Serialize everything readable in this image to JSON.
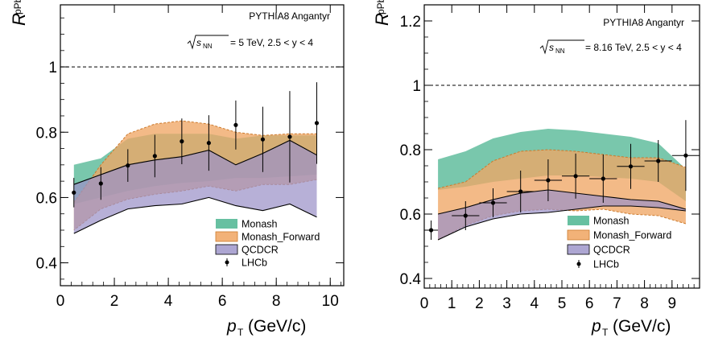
{
  "colors": {
    "monash_fill": "#57b997",
    "monash_forward_fill": "#f0a765",
    "monash_forward_line": "#cc7a2c",
    "qcdcr_fill": "#9b92c8",
    "lhcb_marker": "#000000",
    "reference_line": "#000000"
  },
  "chart_data": [
    {
      "type": "area",
      "generator_label": "PYTHIA8 Angantyr",
      "energy_label": "= 5 TeV, 2.5 < y < 4",
      "sqrt_label": "s",
      "sqrt_subscript": "NN",
      "ylabel_main": "R",
      "ylabel_sub": "pPb",
      "xlabel_main": "p",
      "xlabel_sub": "T",
      "xlabel_unit": "(GeV/c)",
      "xlim": [
        0,
        10.5
      ],
      "ylim": [
        0.33,
        1.19
      ],
      "xticks": [
        0,
        2,
        4,
        6,
        8,
        10
      ],
      "yticks": [
        0.4,
        0.6,
        0.8,
        1
      ],
      "ytick_labels": [
        "0.4",
        "0.6",
        "0.8",
        "1"
      ],
      "reference_y": 1,
      "legend": [
        "Monash",
        "Monash_Forward",
        "QCDCR",
        "LHCb"
      ],
      "series": [
        {
          "name": "Monash",
          "x": [
            0.5,
            1.5,
            2.5,
            3.5,
            4.5,
            5.5,
            6.5,
            7.5,
            8.5,
            9.5
          ],
          "upper": [
            0.7,
            0.72,
            0.78,
            0.795,
            0.795,
            0.795,
            0.78,
            0.79,
            0.79,
            0.79
          ],
          "lower": [
            0.58,
            0.6,
            0.62,
            0.635,
            0.645,
            0.65,
            0.66,
            0.66,
            0.665,
            0.67
          ]
        },
        {
          "name": "Monash_Forward",
          "x": [
            0.5,
            1.5,
            2.5,
            3.5,
            4.5,
            5.5,
            6.5,
            7.5,
            8.5,
            9.5
          ],
          "upper": [
            0.585,
            0.7,
            0.795,
            0.825,
            0.835,
            0.825,
            0.8,
            0.79,
            0.795,
            0.795
          ],
          "lower": [
            0.5,
            0.565,
            0.595,
            0.61,
            0.62,
            0.635,
            0.62,
            0.64,
            0.64,
            0.655
          ]
        },
        {
          "name": "QCDCR",
          "x": [
            0.5,
            1.5,
            2.5,
            3.5,
            4.5,
            5.5,
            6.5,
            7.5,
            8.5,
            9.5
          ],
          "upper": [
            0.64,
            0.67,
            0.7,
            0.715,
            0.725,
            0.745,
            0.7,
            0.735,
            0.775,
            0.73
          ],
          "lower": [
            0.49,
            0.53,
            0.565,
            0.575,
            0.58,
            0.6,
            0.575,
            0.56,
            0.58,
            0.54
          ]
        },
        {
          "name": "LHCb",
          "x": [
            0.5,
            1.5,
            2.5,
            3.5,
            4.5,
            5.5,
            6.5,
            7.5,
            8.5,
            9.5
          ],
          "y": [
            0.615,
            0.643,
            0.698,
            0.727,
            0.772,
            0.767,
            0.822,
            0.778,
            0.786,
            0.828
          ],
          "yerr": [
            0.045,
            0.05,
            0.05,
            0.065,
            0.07,
            0.085,
            0.075,
            0.1,
            0.14,
            0.125
          ]
        }
      ]
    },
    {
      "type": "area",
      "generator_label": "PYTHIA8 Angantyr",
      "energy_label": "= 8.16 TeV, 2.5 < y < 4",
      "sqrt_label": "s",
      "sqrt_subscript": "NN",
      "ylabel_main": "R",
      "ylabel_sub": "pPb",
      "xlabel_main": "p",
      "xlabel_sub": "T",
      "xlabel_unit": "(GeV/c)",
      "xlim": [
        0,
        10
      ],
      "ylim": [
        0.37,
        1.25
      ],
      "xticks": [
        0,
        1,
        2,
        3,
        4,
        5,
        6,
        7,
        8,
        9
      ],
      "yticks": [
        0.4,
        0.6,
        0.8,
        1,
        1.2
      ],
      "ytick_labels": [
        "0.4",
        "0.6",
        "0.8",
        "1",
        "1.2"
      ],
      "reference_y": 1,
      "legend": [
        "Monash",
        "Monash_Forward",
        "QCDCR",
        "LHCb"
      ],
      "series": [
        {
          "name": "Monash",
          "x": [
            0.5,
            1.5,
            2.5,
            3.5,
            4.5,
            5.5,
            6.5,
            7.5,
            8.5,
            9.5
          ],
          "upper": [
            0.77,
            0.795,
            0.835,
            0.855,
            0.865,
            0.86,
            0.85,
            0.84,
            0.82,
            0.74
          ],
          "lower": [
            0.675,
            0.685,
            0.7,
            0.71,
            0.72,
            0.72,
            0.715,
            0.71,
            0.7,
            0.64
          ]
        },
        {
          "name": "Monash_Forward",
          "x": [
            0.5,
            1.5,
            2.5,
            3.5,
            4.5,
            5.5,
            6.5,
            7.5,
            8.5,
            9.5
          ],
          "upper": [
            0.68,
            0.7,
            0.765,
            0.795,
            0.8,
            0.795,
            0.785,
            0.775,
            0.775,
            0.745
          ],
          "lower": [
            0.52,
            0.565,
            0.595,
            0.61,
            0.615,
            0.61,
            0.615,
            0.6,
            0.595,
            0.57
          ]
        },
        {
          "name": "QCDCR",
          "x": [
            0.5,
            1.5,
            2.5,
            3.5,
            4.5,
            5.5,
            6.5,
            7.5,
            8.5,
            9.5
          ],
          "upper": [
            0.6,
            0.62,
            0.645,
            0.665,
            0.675,
            0.665,
            0.655,
            0.645,
            0.64,
            0.615
          ],
          "lower": [
            0.52,
            0.56,
            0.585,
            0.6,
            0.605,
            0.615,
            0.625,
            0.625,
            0.62,
            0.61
          ]
        },
        {
          "name": "LHCb",
          "x": [
            0.25,
            1.5,
            2.5,
            3.5,
            4.5,
            5.5,
            6.5,
            7.5,
            8.5,
            9.5
          ],
          "xerr": [
            0.25,
            0.5,
            0.5,
            0.5,
            0.5,
            0.5,
            0.5,
            0.5,
            0.5,
            0.5
          ],
          "y": [
            0.55,
            0.595,
            0.635,
            0.67,
            0.705,
            0.718,
            0.71,
            0.748,
            0.765,
            0.782
          ],
          "yerr": [
            0.03,
            0.045,
            0.045,
            0.065,
            0.065,
            0.07,
            0.075,
            0.07,
            0.065,
            0.11
          ]
        }
      ]
    }
  ]
}
